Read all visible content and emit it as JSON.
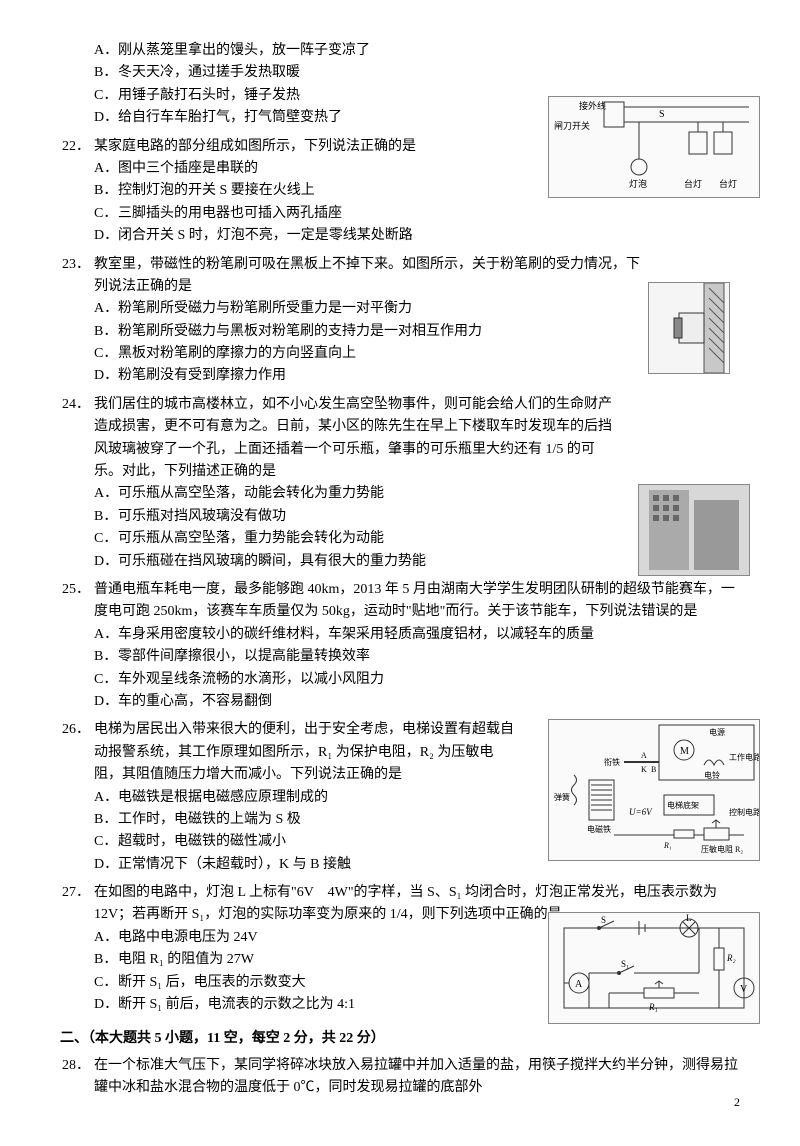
{
  "q21_options": [
    {
      "l": "A．",
      "t": "刚从蒸笼里拿出的馒头，放一阵子变凉了"
    },
    {
      "l": "B．",
      "t": "冬天天冷，通过搓手发热取暖"
    },
    {
      "l": "C．",
      "t": "用锤子敲打石头时，锤子发热"
    },
    {
      "l": "D．",
      "t": "给自行车车胎打气，打气筒壁变热了"
    }
  ],
  "q22": {
    "num": "22．",
    "stem": "某家庭电路的部分组成如图所示，下列说法正确的是",
    "options": [
      {
        "l": "A．",
        "t": "图中三个插座是串联的"
      },
      {
        "l": "B．",
        "t": "控制灯泡的开关 S 要接在火线上"
      },
      {
        "l": "C．",
        "t": "三脚插头的用电器也可插入两孔插座"
      },
      {
        "l": "D．",
        "t": "闭合开关 S 时，灯泡不亮，一定是零线某处断路"
      }
    ],
    "fig_labels": {
      "a": "接外线",
      "b": "闸刀开关",
      "c": "S",
      "d": "灯泡",
      "e": "台灯",
      "f": "台灯"
    }
  },
  "q23": {
    "num": "23．",
    "stem": "教室里，带磁性的粉笔刷可吸在黑板上不掉下来。如图所示，关于粉笔刷的受力情况，下列说法正确的是",
    "options": [
      {
        "l": "A．",
        "t": "粉笔刷所受磁力与粉笔刷所受重力是一对平衡力"
      },
      {
        "l": "B．",
        "t": "粉笔刷所受磁力与黑板对粉笔刷的支持力是一对相互作用力"
      },
      {
        "l": "C．",
        "t": "黑板对粉笔刷的摩擦力的方向竖直向上"
      },
      {
        "l": "D．",
        "t": "粉笔刷没有受到摩擦力作用"
      }
    ]
  },
  "q24": {
    "num": "24．",
    "stem": "我们居住的城市高楼林立，如不小心发生高空坠物事件，则可能会给人们的生命财产造成损害，更不可有意为之。日前，某小区的陈先生在早上下楼取车时发现车的后挡风玻璃被穿了一个孔，上面还插着一个可乐瓶，肇事的可乐瓶里大约还有 1/5 的可乐。对此，下列描述正确的是",
    "options": [
      {
        "l": "A．",
        "t": "可乐瓶从高空坠落，动能会转化为重力势能"
      },
      {
        "l": "B．",
        "t": "可乐瓶对挡风玻璃没有做功"
      },
      {
        "l": "C．",
        "t": "可乐瓶从高空坠落，重力势能会转化为动能"
      },
      {
        "l": "D．",
        "t": "可乐瓶碰在挡风玻璃的瞬间，具有很大的重力势能"
      }
    ]
  },
  "q25": {
    "num": "25．",
    "stem": "普通电瓶车耗电一度，最多能够跑 40km，2013 年 5 月由湖南大学学生发明团队研制的超级节能赛车，一度电可跑 250km，该赛车车质量仅为 50kg，运动时\"贴地\"而行。关于该节能车，下列说法错误的是",
    "options": [
      {
        "l": "A．",
        "t": "车身采用密度较小的碳纤维材料，车架采用轻质高强度铝材，以减轻车的质量"
      },
      {
        "l": "B．",
        "t": "零部件间摩擦很小，以提高能量转换效率"
      },
      {
        "l": "C．",
        "t": "车外观呈线条流畅的水滴形，以减小风阻力"
      },
      {
        "l": "D．",
        "t": "车的重心高，不容易翻倒"
      }
    ]
  },
  "q26": {
    "num": "26．",
    "stem": "电梯为居民出入带来很大的便利，出于安全考虑，电梯设置有超载自动报警系统，其工作原理如图所示，R₁ 为保护电阻，R₂ 为压敏电阻，其阻值随压力增大而减小。下列说法正确的是",
    "options": [
      {
        "l": "A．",
        "t": "电磁铁是根据电磁感应原理制成的"
      },
      {
        "l": "B．",
        "t": "工作时，电磁铁的上端为 S 极"
      },
      {
        "l": "C．",
        "t": "超载时，电磁铁的磁性减小"
      },
      {
        "l": "D．",
        "t": "正常情况下（未超载时），K 与 B 接触"
      }
    ],
    "fig_labels": {
      "a": "电源",
      "b": "工作电路",
      "c": "衔铁",
      "d": "电铃",
      "e": "弹簧",
      "f": "电磁铁",
      "g": "U=6V",
      "h": "电梯底架",
      "i": "控制电路",
      "j": "R₁",
      "k": "压敏电阻 R₂",
      "m": "M",
      "ak": "A",
      "bk": "B",
      "kk": "K"
    }
  },
  "q27": {
    "num": "27．",
    "stem": "在如图的电路中，灯泡 L 上标有\"6V　4W\"的字样，当 S、S₁ 均闭合时，灯泡正常发光，电压表示数为 12V；若再断开 S₁，灯泡的实际功率变为原来的 1/4，则下列选项中正确的是",
    "options": [
      {
        "l": "A．",
        "t": "电路中电源电压为 24V"
      },
      {
        "l": "B．",
        "t": "电阻 R₁ 的阻值为 27W"
      },
      {
        "l": "C．",
        "t": "断开 S₁ 后，电压表的示数变大"
      },
      {
        "l": "D．",
        "t": "断开 S₁ 前后，电流表的示数之比为 4:1"
      }
    ],
    "fig_labels": {
      "s": "S",
      "l": "L",
      "s1": "S₁",
      "a": "A",
      "v": "V",
      "r1": "R₁",
      "r2": "R₂"
    }
  },
  "section2": "二、（本大题共 5 小题，11 空，每空 2 分，共 22 分）",
  "q28": {
    "num": "28．",
    "stem": "在一个标准大气压下，某同学将碎冰块放入易拉罐中并加入适量的盐，用筷子搅拌大约半分钟，测得易拉罐中冰和盐水混合物的温度低于 0℃，同时发现易拉罐的底部外"
  },
  "page": "2"
}
